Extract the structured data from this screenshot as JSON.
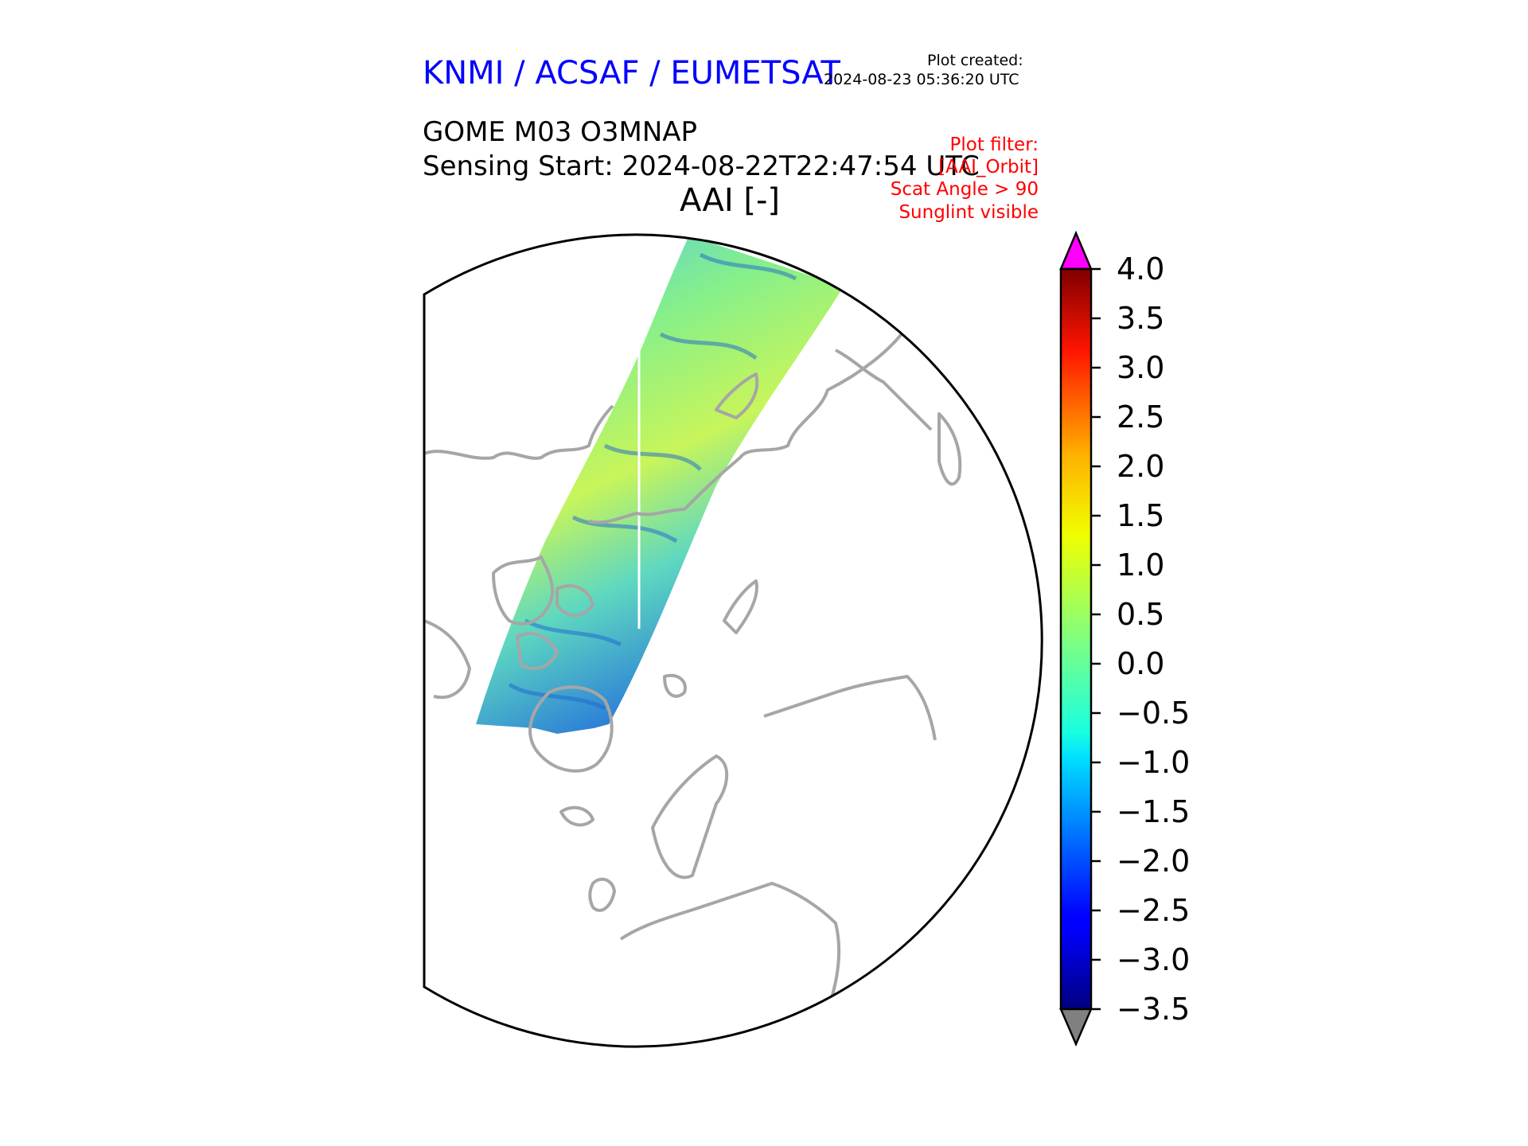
{
  "header": {
    "organization": "KNMI / ACSAF / EUMETSAT",
    "plot_created_label": "Plot created:",
    "plot_created_time": "2024-08-23 05:36:20 UTC",
    "product": "GOME M03 O3MNAP",
    "sensing_start": "Sensing Start: 2024-08-22T22:47:54 UTC",
    "variable_title": "AAI [-]"
  },
  "filters": {
    "line1": "Plot filter:",
    "line2": "[AAI_Orbit]",
    "line3": "Scat Angle > 90",
    "line4": "Sunglint visible"
  },
  "colorbar": {
    "min": -3.5,
    "max": 4.0,
    "ticks": [
      "4.0",
      "3.5",
      "3.0",
      "2.5",
      "2.0",
      "1.5",
      "1.0",
      "0.5",
      "0.0",
      "−0.5",
      "−1.0",
      "−1.5",
      "−2.0",
      "−2.5",
      "−3.0",
      "−3.5"
    ],
    "extend_high_color": "#ff00ff",
    "extend_low_color": "#808080",
    "colormap": "jet"
  },
  "map": {
    "projection": "north-polar-stereographic",
    "coastline_color": "#a6a6a6",
    "swath_mean_aai": 0.3
  }
}
